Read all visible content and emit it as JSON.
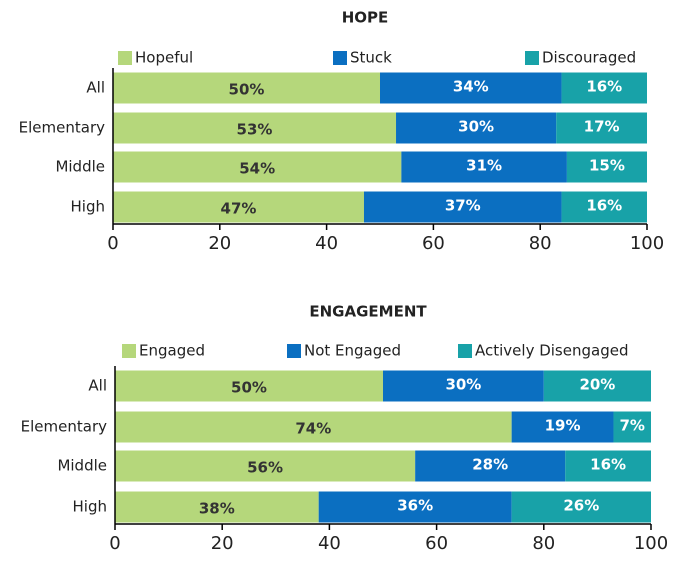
{
  "chart_data": [
    {
      "type": "bar",
      "orientation": "horizontal",
      "stacked": true,
      "title": "HOPE",
      "categories": [
        "All",
        "Elementary",
        "Middle",
        "High"
      ],
      "series": [
        {
          "name": "Hopeful",
          "color": "#b5d77b",
          "values": [
            50,
            53,
            54,
            47
          ],
          "value_labels": [
            "50%",
            "53%",
            "54%",
            "47%"
          ]
        },
        {
          "name": "Stuck",
          "color": "#0b6fc1",
          "values": [
            34,
            30,
            31,
            37
          ],
          "value_labels": [
            "34%",
            "30%",
            "31%",
            "37%"
          ]
        },
        {
          "name": "Discouraged",
          "color": "#18a2a8",
          "values": [
            16,
            17,
            15,
            16
          ],
          "value_labels": [
            "16%",
            "17%",
            "15%",
            "16%"
          ]
        }
      ],
      "xlim": [
        0,
        100
      ],
      "xticks": [
        0,
        20,
        40,
        60,
        80,
        100
      ],
      "legend": "top"
    },
    {
      "type": "bar",
      "orientation": "horizontal",
      "stacked": true,
      "title": "ENGAGEMENT",
      "categories": [
        "All",
        "Elementary",
        "Middle",
        "High"
      ],
      "series": [
        {
          "name": "Engaged",
          "color": "#b5d77b",
          "values": [
            50,
            74,
            56,
            38
          ],
          "value_labels": [
            "50%",
            "74%",
            "56%",
            "38%"
          ]
        },
        {
          "name": "Not Engaged",
          "color": "#0b6fc1",
          "values": [
            30,
            19,
            28,
            36
          ],
          "value_labels": [
            "30%",
            "19%",
            "28%",
            "36%"
          ]
        },
        {
          "name": "Actively Disengaged",
          "color": "#18a2a8",
          "values": [
            20,
            7,
            16,
            26
          ],
          "value_labels": [
            "20%",
            "7%",
            "16%",
            "26%"
          ]
        }
      ],
      "xlim": [
        0,
        100
      ],
      "xticks": [
        0,
        20,
        40,
        60,
        80,
        100
      ],
      "legend": "top"
    }
  ]
}
